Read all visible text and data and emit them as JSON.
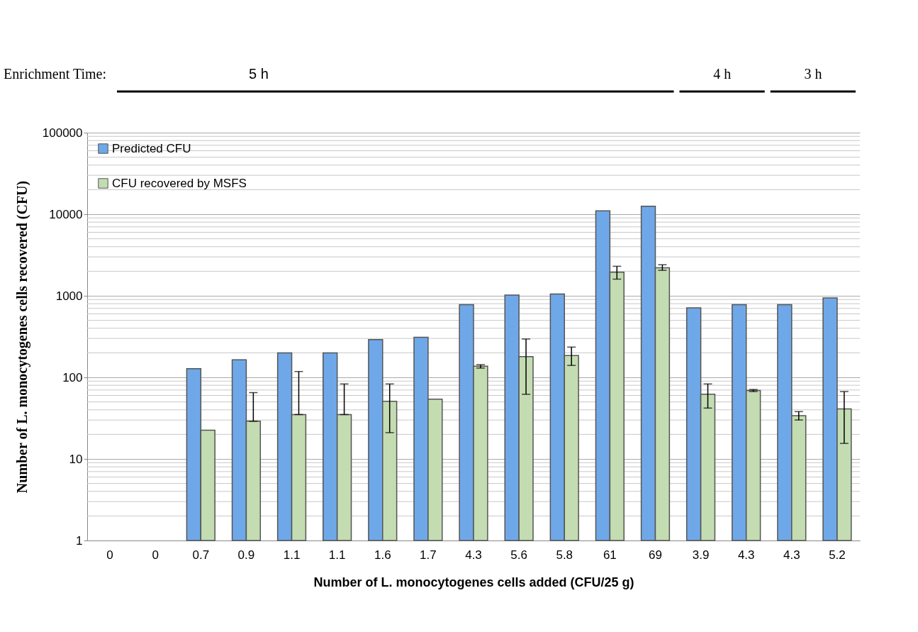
{
  "chart_data": {
    "type": "bar",
    "xlabel": "Number of L. monocytogenes cells added (CFU/25 g)",
    "ylabel": "Number of L. monocytogenes cells recovered (CFU)",
    "categories": [
      "0",
      "0",
      "0.7",
      "0.9",
      "1.1",
      "1.1",
      "1.6",
      "1.7",
      "4.3",
      "5.6",
      "5.8",
      "61",
      "69",
      "3.9",
      "4.3",
      "4.3",
      "5.2"
    ],
    "series": [
      {
        "name": "Predicted CFU",
        "color": "#6fa8e8",
        "values": [
          null,
          null,
          128,
          164,
          200,
          200,
          290,
          310,
          780,
          1020,
          1050,
          11000,
          12500,
          710,
          780,
          780,
          940
        ]
      },
      {
        "name": "CFU recovered by MSFS",
        "color": "#c4dcb2",
        "values": [
          null,
          null,
          22.5,
          29,
          35,
          35,
          51,
          54,
          137,
          180,
          185,
          1950,
          2200,
          62,
          69,
          34,
          41
        ],
        "errors": [
          null,
          null,
          null,
          [
            29,
            65
          ],
          [
            35,
            118
          ],
          [
            35,
            83
          ],
          [
            21,
            83
          ],
          null,
          [
            130,
            143
          ],
          [
            62,
            295
          ],
          [
            140,
            235
          ],
          [
            1600,
            2300
          ],
          [
            2050,
            2400
          ],
          [
            42,
            83
          ],
          [
            67,
            71
          ],
          [
            30,
            38
          ],
          [
            15.5,
            67
          ]
        ]
      }
    ],
    "log": true,
    "ylim": [
      1,
      100000
    ],
    "yticks": [
      1,
      10,
      100,
      1000,
      10000,
      100000
    ],
    "grid": "y",
    "legend": "top left",
    "annotations": [
      "Enrichment Time:",
      "5 h",
      "4 h",
      "3 h"
    ]
  }
}
